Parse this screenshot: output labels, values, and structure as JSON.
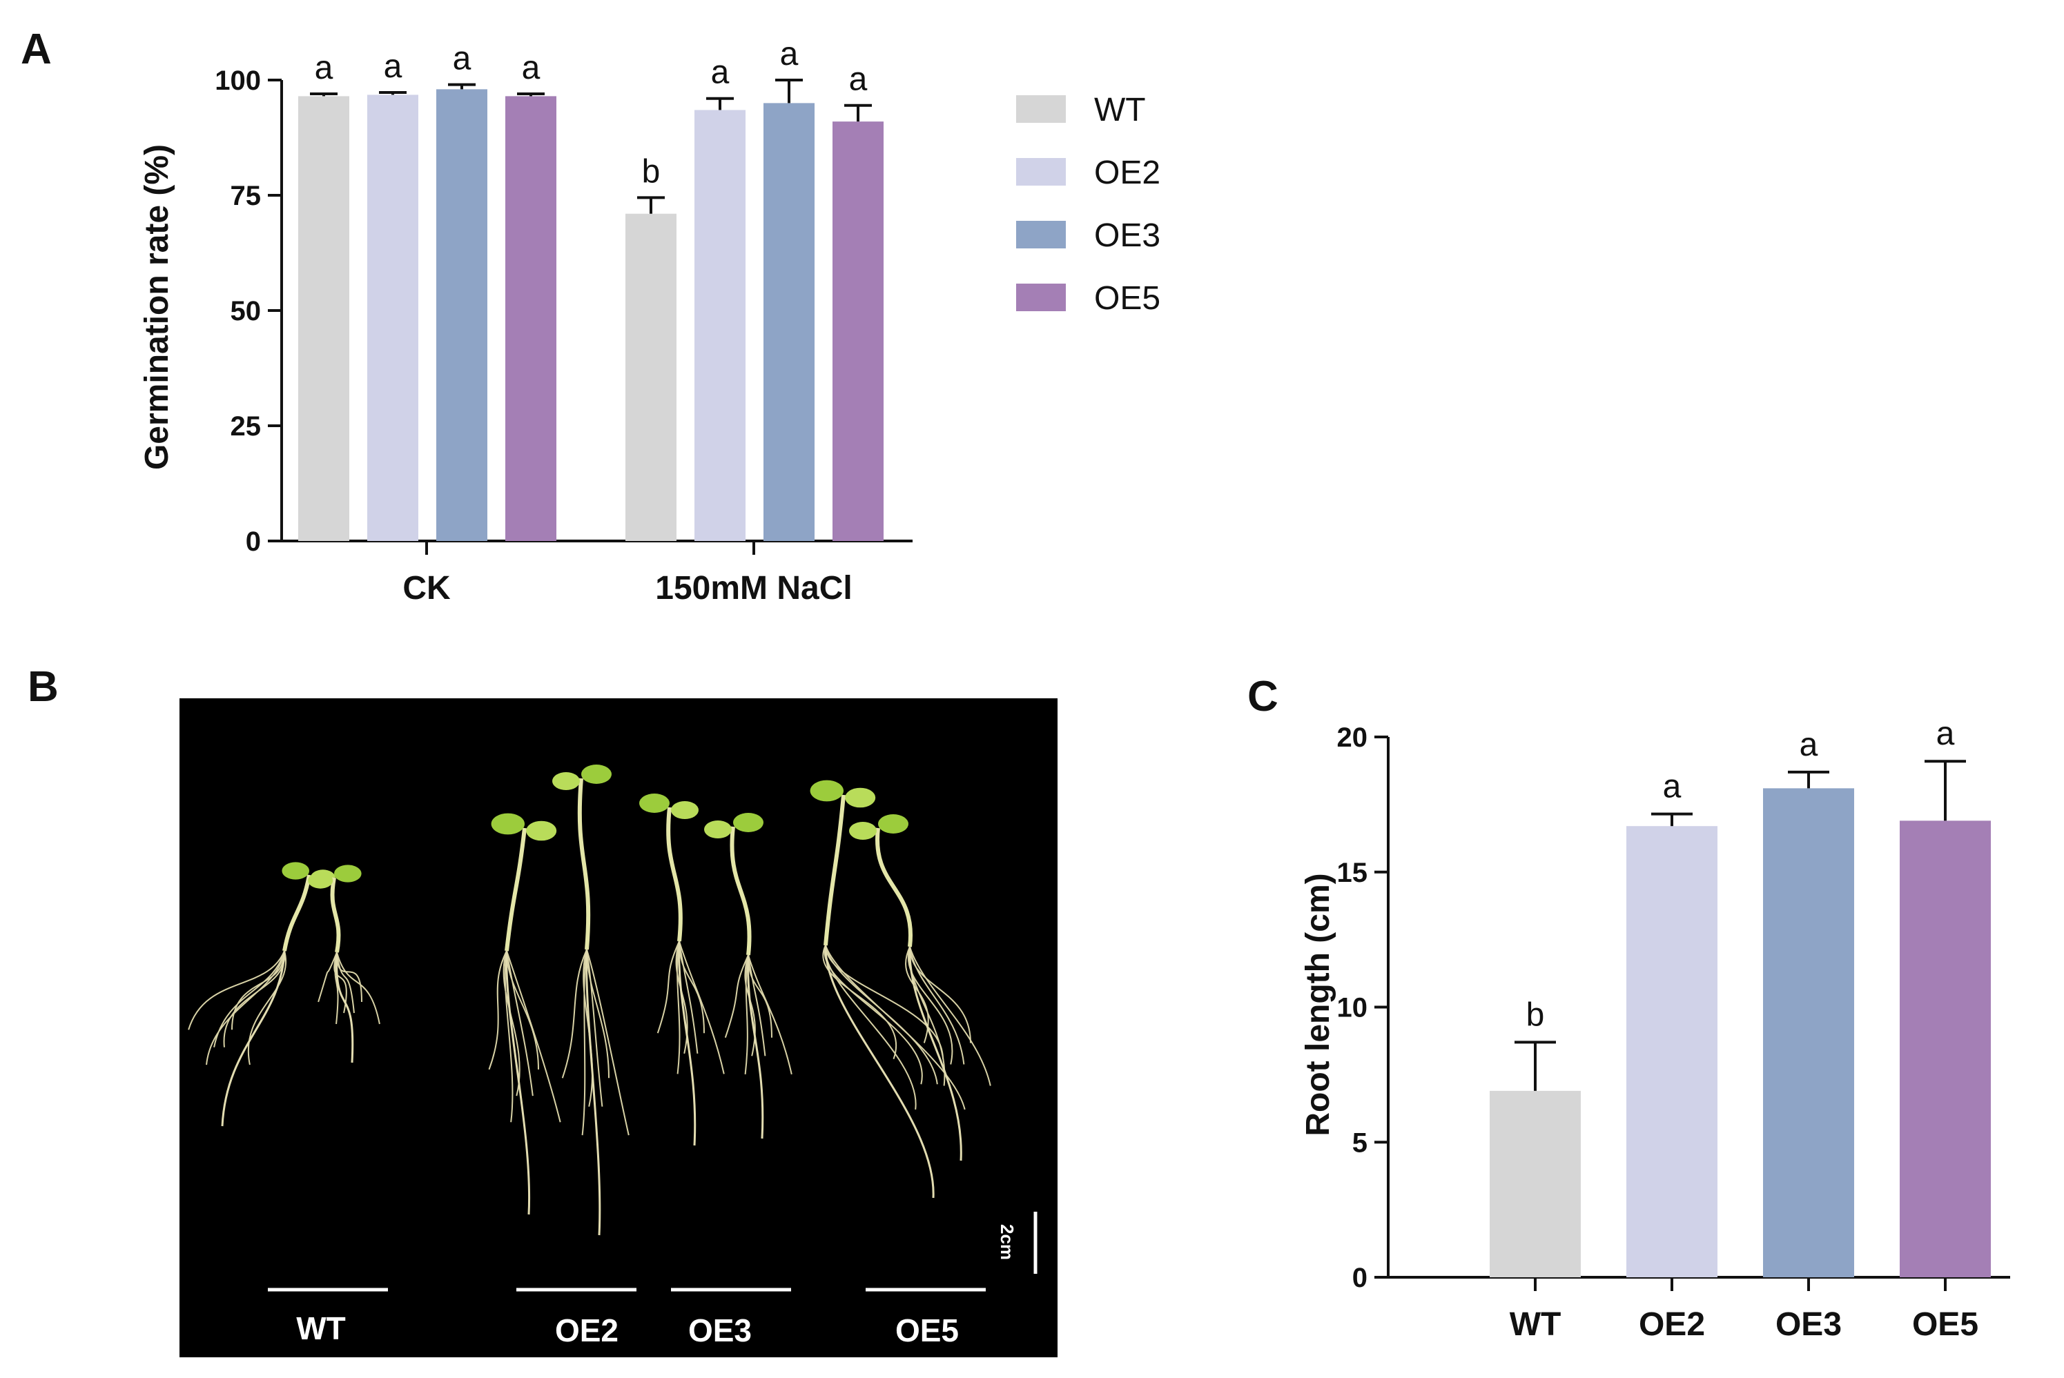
{
  "panels": {
    "a": "A",
    "b": "B",
    "c": "C"
  },
  "colors": {
    "WT": "#d6d6d6",
    "OE2": "#d0d2e8",
    "OE3": "#8ea4c6",
    "OE5": "#a47fb5"
  },
  "photo": {
    "labels": [
      "WT",
      "OE2",
      "OE3",
      "OE5"
    ],
    "scale_label": "2cm"
  },
  "chart_data": [
    {
      "type": "bar",
      "panel": "A",
      "title": "",
      "xlabel": "",
      "ylabel": "Germination rate (%)",
      "ylim": [
        0,
        100
      ],
      "yticks": [
        "0",
        "25",
        "50",
        "75",
        "100"
      ],
      "categories": [
        "CK",
        "150mM NaCl"
      ],
      "legend_position": "right",
      "series": [
        {
          "name": "WT",
          "values": [
            96.5,
            71.0
          ],
          "errors": [
            0.5,
            3.5
          ],
          "letters": [
            "a",
            "b"
          ]
        },
        {
          "name": "OE2",
          "values": [
            96.8,
            93.5
          ],
          "errors": [
            0.5,
            2.5
          ],
          "letters": [
            "a",
            "a"
          ]
        },
        {
          "name": "OE3",
          "values": [
            98.0,
            95.0
          ],
          "errors": [
            1.0,
            5.0
          ],
          "letters": [
            "a",
            "a"
          ]
        },
        {
          "name": "OE5",
          "values": [
            96.5,
            91.0
          ],
          "errors": [
            0.5,
            3.5
          ],
          "letters": [
            "a",
            "a"
          ]
        }
      ]
    },
    {
      "type": "bar",
      "panel": "C",
      "title": "",
      "xlabel": "",
      "ylabel": "Root length (cm)",
      "ylim": [
        0,
        20
      ],
      "yticks": [
        "0",
        "5",
        "10",
        "15",
        "20"
      ],
      "categories": [
        "WT",
        "OE2",
        "OE3",
        "OE5"
      ],
      "values": [
        6.9,
        16.7,
        18.1,
        16.9
      ],
      "errors": [
        1.8,
        0.45,
        0.6,
        2.2
      ],
      "letters": [
        "b",
        "a",
        "a",
        "a"
      ]
    }
  ]
}
